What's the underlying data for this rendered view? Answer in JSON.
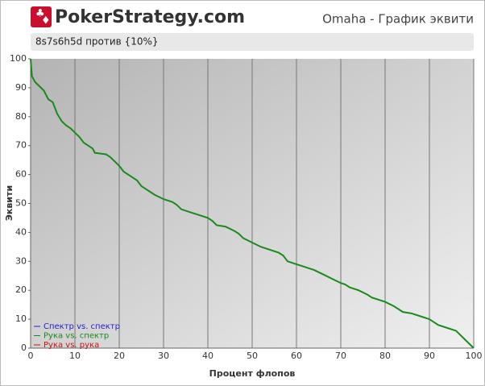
{
  "logo": "PokerStrategy.com",
  "chart_data": {
    "type": "line",
    "title": "Omaha - График эквити",
    "subtitle": "8s7s6h5d против {10%}",
    "x_label": "Процент флопов",
    "y_label": "Эквити",
    "xlim": [
      0,
      100
    ],
    "xticks": [
      0,
      10,
      20,
      30,
      40,
      50,
      60,
      70,
      80,
      90,
      100
    ],
    "ylim": [
      0,
      100
    ],
    "yticks": [
      0,
      10,
      20,
      30,
      40,
      50,
      60,
      70,
      80,
      90,
      100
    ],
    "grid": "x",
    "legend": [
      {
        "name": "Спектр vs. спектр",
        "color": "#2222cc"
      },
      {
        "name": "Рука vs. спектр",
        "color": "#1a8a1a"
      },
      {
        "name": "Рука vs. рука",
        "color": "#cc1111"
      }
    ],
    "x": [
      0,
      0.3,
      1,
      2,
      3,
      4,
      5,
      6,
      7,
      8,
      9,
      10,
      11,
      12,
      13,
      14,
      14.5,
      17,
      18,
      19,
      20,
      21,
      22,
      23,
      24,
      25,
      26,
      27,
      28,
      30,
      32,
      33,
      34,
      36,
      38,
      40,
      41,
      42,
      44,
      46,
      47,
      48,
      50,
      52,
      54,
      56,
      57,
      58,
      60,
      62,
      64,
      66,
      68,
      70,
      71,
      72,
      74,
      76,
      77,
      80,
      82,
      84,
      86,
      88,
      90,
      91,
      92,
      94,
      96,
      97,
      98,
      99,
      100
    ],
    "series": [
      {
        "name": "Рука vs. спектр",
        "color": "#1a8a1a",
        "values": [
          100,
          94,
          92,
          90.5,
          89,
          86,
          85,
          81,
          78.5,
          77,
          76,
          74.5,
          73,
          71,
          70,
          69,
          67.5,
          67,
          66,
          64.5,
          63,
          61,
          60,
          59,
          58,
          56,
          55,
          54,
          53,
          51.5,
          50.5,
          49.5,
          48,
          47,
          46,
          45,
          44,
          42.5,
          42,
          40.5,
          39.5,
          38,
          36.5,
          35,
          34,
          33,
          32,
          30,
          29,
          28,
          27,
          25.5,
          24,
          22.5,
          22,
          21,
          20,
          18.5,
          17.5,
          16,
          14.5,
          12.5,
          12,
          11,
          10,
          9,
          8,
          7,
          6,
          4.5,
          3,
          1.5,
          0
        ]
      }
    ]
  }
}
